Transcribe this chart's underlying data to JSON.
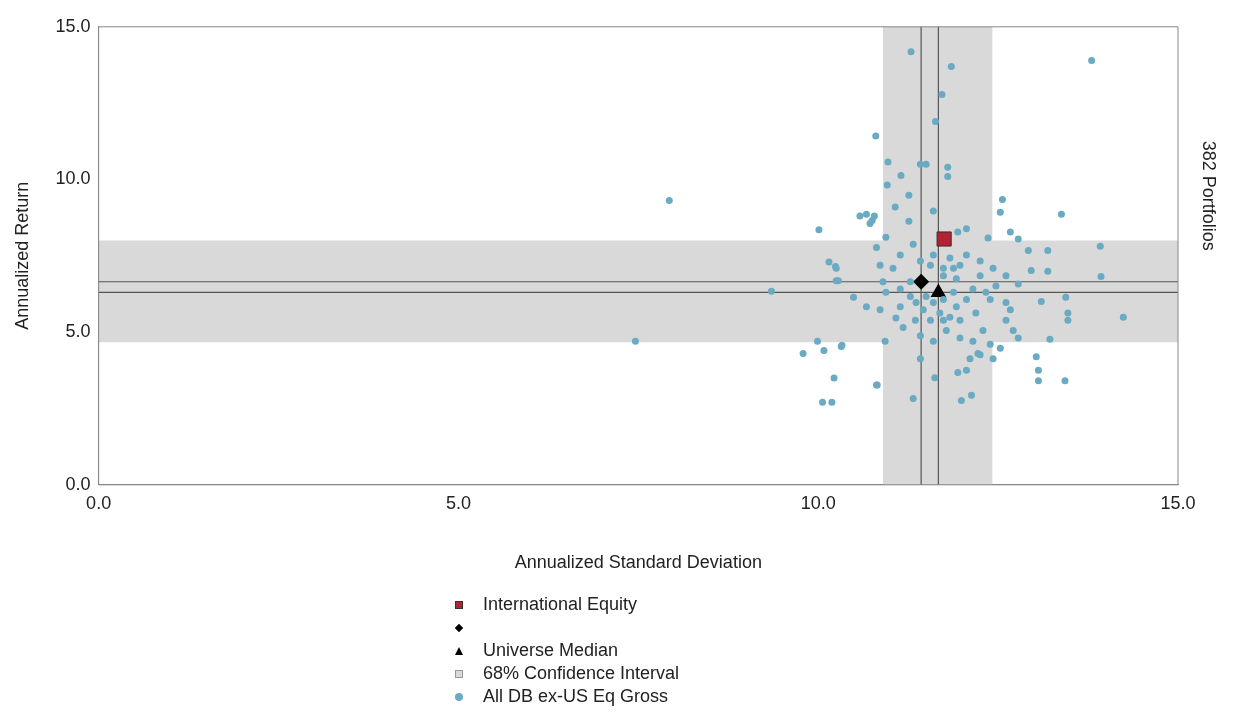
{
  "chart_data": {
    "type": "scatter",
    "xlabel": "Annualized Standard Deviation",
    "ylabel": "Annualized Return",
    "annotations": [
      "382 Portfolios"
    ],
    "xlim": [
      0,
      15
    ],
    "ylim": [
      0,
      15
    ],
    "xticks": [
      {
        "value": 0,
        "label": "0.0"
      },
      {
        "value": 5,
        "label": "5.0"
      },
      {
        "value": 10,
        "label": "10.0"
      },
      {
        "value": 15,
        "label": "15.0"
      }
    ],
    "yticks": [
      {
        "value": 0,
        "label": "0.0"
      },
      {
        "value": 5,
        "label": "5.0"
      },
      {
        "value": 10,
        "label": "10.0"
      },
      {
        "value": 15,
        "label": "15.0"
      }
    ],
    "grid": false,
    "legend": "bottom",
    "bands": [
      {
        "axis": "x",
        "from": 10.9,
        "to": 12.42,
        "label": "68% Confidence Interval",
        "color": "#d9d9d9"
      },
      {
        "axis": "y",
        "from": 4.67,
        "to": 8.0,
        "color": "#d9d9d9"
      }
    ],
    "ref_lines": [
      {
        "axis": "x",
        "value": 11.43,
        "color": "#555555"
      },
      {
        "axis": "x",
        "value": 11.67,
        "color": "#555555"
      },
      {
        "axis": "y",
        "value": 6.65,
        "color": "#555555"
      },
      {
        "axis": "y",
        "value": 6.3,
        "color": "#555555"
      }
    ],
    "series": [
      {
        "name": "International Equity",
        "color": "#b22234",
        "marker": "square",
        "x": [
          11.75
        ],
        "values": [
          8.05
        ]
      },
      {
        "color": "#000000",
        "marker": "diamond",
        "x": [
          11.43
        ],
        "values": [
          6.65
        ]
      },
      {
        "name": "Universe Median",
        "color": "#000000",
        "marker": "triangle",
        "x": [
          11.67
        ],
        "values": [
          6.3
        ]
      },
      {
        "name": "All DB ex-US Eq Gross",
        "color": "#6aaac2",
        "marker": "circle",
        "x": [
          7.93,
          7.46,
          9.35,
          10.01,
          10.15,
          10.24,
          10.28,
          9.99,
          9.79,
          10.08,
          10.33,
          10.22,
          10.06,
          10.19,
          10.82,
          10.58,
          10.67,
          10.78,
          11.29,
          11.85,
          13.8,
          11.72,
          11.63,
          10.8,
          10.97,
          11.42,
          11.5,
          11.8,
          11.8,
          11.15,
          10.96,
          11.26,
          11.07,
          11.6,
          12.56,
          12.53,
          13.38,
          11.26,
          10.72,
          10.75,
          10.94,
          10.81,
          11.14,
          11.32,
          11.94,
          12.06,
          12.36,
          12.67,
          12.78,
          12.92,
          13.19,
          13.92,
          13.93,
          13.19,
          12.96,
          12.78,
          12.61,
          12.43,
          12.25,
          12.06,
          11.83,
          11.74,
          11.56,
          11.6,
          11.04,
          10.86,
          10.25,
          10.25,
          10.49,
          10.67,
          10.86,
          10.94,
          11.14,
          11.28,
          11.08,
          11.18,
          11.35,
          11.46,
          11.56,
          11.69,
          11.83,
          11.92,
          12.06,
          12.19,
          12.15,
          12.33,
          12.47,
          12.61,
          12.67,
          12.61,
          12.71,
          12.78,
          13.22,
          13.1,
          13.44,
          13.47,
          13.47,
          14.24,
          13.03,
          13.06,
          13.06,
          13.43,
          12.53,
          12.43,
          12.25,
          12.11,
          12.06,
          11.94,
          12.13,
          11.99,
          11.62,
          11.42,
          11.32,
          10.81,
          10.32,
          10.93,
          11.42,
          11.6,
          11.78,
          11.97,
          12.15,
          12.29,
          12.39,
          12.22,
          11.74,
          11.92,
          11.42,
          10.9,
          11.5,
          11.74,
          11.36,
          11.6,
          11.88,
          12.39,
          12.25,
          11.97,
          11.28,
          11.14,
          11.74,
          11.97,
          11.88
        ],
        "values": [
          9.31,
          4.7,
          6.34,
          8.35,
          7.3,
          7.15,
          6.68,
          4.7,
          4.3,
          4.4,
          4.57,
          3.5,
          2.7,
          2.7,
          3.27,
          8.8,
          8.86,
          8.8,
          14.18,
          13.7,
          13.9,
          12.78,
          11.9,
          11.42,
          10.57,
          10.5,
          10.5,
          10.4,
          10.1,
          10.13,
          9.82,
          9.48,
          9.1,
          8.97,
          9.34,
          8.93,
          8.86,
          8.63,
          8.56,
          8.66,
          8.11,
          7.77,
          7.53,
          7.88,
          8.28,
          8.39,
          8.08,
          8.28,
          8.05,
          7.67,
          7.67,
          7.81,
          6.82,
          6.99,
          7.02,
          6.58,
          6.85,
          7.09,
          7.33,
          7.53,
          7.43,
          7.09,
          7.19,
          7.53,
          7.09,
          7.19,
          7.09,
          6.68,
          6.14,
          5.83,
          5.73,
          6.31,
          6.41,
          6.17,
          5.46,
          5.15,
          5.39,
          5.73,
          5.39,
          5.63,
          5.49,
          5.83,
          6.07,
          5.63,
          6.41,
          6.31,
          6.51,
          5.97,
          5.73,
          5.39,
          5.05,
          4.81,
          4.77,
          6.0,
          6.14,
          5.63,
          5.39,
          5.49,
          4.19,
          3.75,
          3.41,
          3.41,
          4.47,
          4.13,
          4.26,
          4.13,
          3.75,
          3.68,
          2.93,
          2.76,
          3.51,
          4.13,
          2.83,
          3.27,
          4.53,
          4.7,
          4.88,
          4.7,
          5.05,
          4.81,
          4.7,
          5.05,
          4.6,
          4.3,
          6.85,
          6.75,
          7.33,
          6.65,
          6.17,
          6.07,
          5.97,
          5.97,
          6.31,
          6.07,
          6.85,
          7.19,
          6.65,
          5.83,
          5.39,
          5.39,
          7.09
        ]
      }
    ]
  }
}
